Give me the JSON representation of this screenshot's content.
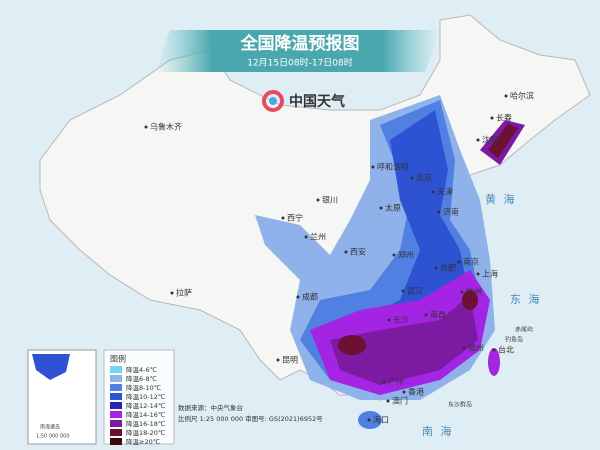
{
  "header": {
    "title": "全国降温预报图",
    "subtitle": "12月15日08时-17日08时",
    "logo": "中国天气"
  },
  "legend": {
    "title": "图例",
    "items": [
      {
        "label": "降温4-6℃",
        "color": "#74d4f2"
      },
      {
        "label": "降温6-8℃",
        "color": "#8fb2ea"
      },
      {
        "label": "降温8-10℃",
        "color": "#4f80e2"
      },
      {
        "label": "降温10-12℃",
        "color": "#2d52d2"
      },
      {
        "label": "降温12-14℃",
        "color": "#2a22b2"
      },
      {
        "label": "降温14-16℃",
        "color": "#a424e4"
      },
      {
        "label": "降温16-18℃",
        "color": "#7c1aa2"
      },
      {
        "label": "降温18-20℃",
        "color": "#6c1034"
      },
      {
        "label": "降温≥20℃",
        "color": "#3c0808"
      }
    ]
  },
  "cities": [
    "乌鲁木齐",
    "拉萨",
    "西宁",
    "兰州",
    "银川",
    "呼和浩特",
    "北京",
    "天津",
    "太原",
    "济南",
    "郑州",
    "西安",
    "成都",
    "武汉",
    "合肥",
    "南京",
    "上海",
    "杭州",
    "长沙",
    "南昌",
    "福州",
    "昆明",
    "广州",
    "香港",
    "澳门",
    "台北",
    "海口",
    "哈尔滨",
    "长春",
    "沈阳"
  ],
  "seas": [
    "黄 海",
    "东 海",
    "南 海"
  ],
  "islands": [
    "赤尾屿",
    "钓鱼岛",
    "东沙群岛"
  ],
  "inset": {
    "title": "南海诸岛",
    "scale": "1:50 000 000"
  },
  "source": {
    "line1": "数据来源：中央气象台",
    "line2": "比例尺 1:25 000 000  审图号: GS(2021)6952号"
  }
}
